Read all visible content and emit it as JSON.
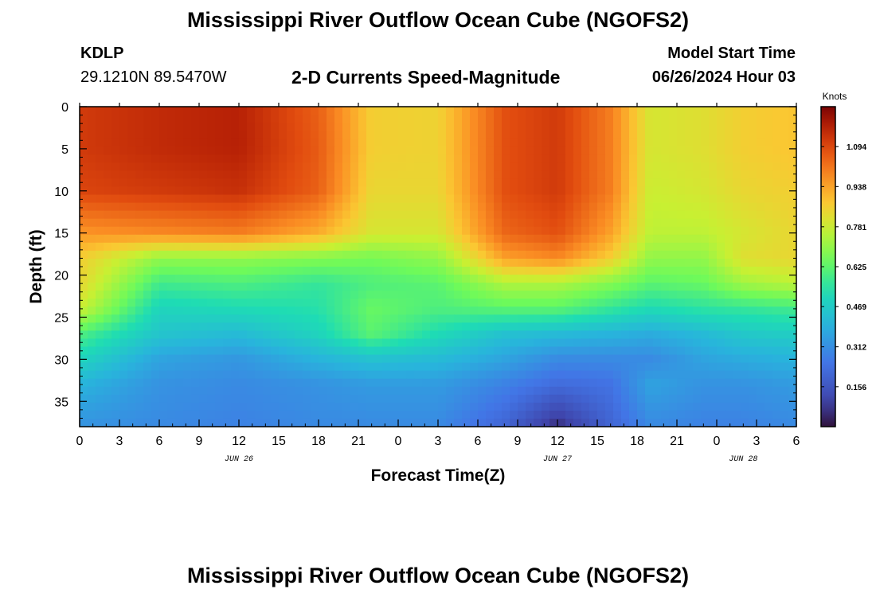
{
  "header": {
    "title": "Mississippi River Outflow Ocean Cube (NGOFS2)",
    "station": "KDLP",
    "coords": "29.1210N  89.5470W",
    "subtitle": "2-D Currents Speed-Magnitude",
    "model_start_label": "Model Start Time",
    "model_start_value": "06/26/2024 Hour 03",
    "footer_title": "Mississippi River Outflow Ocean Cube (NGOFS2)"
  },
  "chart_data": {
    "type": "heatmap",
    "xlabel": "Forecast Time(Z)",
    "ylabel": "Depth (ft)",
    "colorbar_label": "Knots",
    "colorbar_ticks": [
      "0.156",
      "0.312",
      "0.469",
      "0.625",
      "0.781",
      "0.938",
      "1.094"
    ],
    "colorbar_values": [
      0.156,
      0.312,
      0.469,
      0.625,
      0.781,
      0.938,
      1.094
    ],
    "colorbar_range": [
      0.0,
      1.25
    ],
    "x_ticks": [
      "0",
      "3",
      "6",
      "9",
      "12",
      "15",
      "18",
      "21",
      "0",
      "3",
      "6",
      "9",
      "12",
      "15",
      "18",
      "21",
      "0",
      "3",
      "6"
    ],
    "x_hours_elapsed_range": [
      0,
      54
    ],
    "date_labels": [
      {
        "label": "JUN 26",
        "hour": 12
      },
      {
        "label": "JUN 27",
        "hour": 36
      },
      {
        "label": "JUN 28",
        "hour": 50
      }
    ],
    "y_ticks": [
      "0",
      "5",
      "10",
      "15",
      "20",
      "25",
      "30",
      "35"
    ],
    "y_range": [
      0,
      38
    ],
    "hours": [
      0,
      6,
      12,
      18,
      22,
      27,
      32,
      36,
      40,
      43,
      47,
      50,
      54
    ],
    "depths": [
      0,
      5,
      10,
      15,
      18,
      21,
      24,
      27,
      30,
      33,
      38
    ],
    "speed": [
      [
        1.12,
        1.15,
        1.17,
        1.05,
        0.86,
        0.85,
        1.08,
        1.12,
        1.0,
        0.8,
        0.82,
        0.86,
        0.88
      ],
      [
        1.12,
        1.15,
        1.17,
        1.06,
        0.86,
        0.85,
        1.08,
        1.12,
        1.0,
        0.8,
        0.82,
        0.86,
        0.88
      ],
      [
        1.1,
        1.12,
        1.14,
        1.05,
        0.84,
        0.84,
        1.08,
        1.12,
        1.0,
        0.78,
        0.8,
        0.84,
        0.86
      ],
      [
        0.96,
        0.98,
        1.0,
        0.92,
        0.8,
        0.8,
        1.04,
        1.08,
        0.94,
        0.76,
        0.76,
        0.8,
        0.84
      ],
      [
        0.86,
        0.7,
        0.7,
        0.68,
        0.66,
        0.7,
        0.94,
        0.98,
        0.86,
        0.7,
        0.7,
        0.82,
        0.84
      ],
      [
        0.84,
        0.58,
        0.6,
        0.56,
        0.6,
        0.62,
        0.74,
        0.74,
        0.68,
        0.62,
        0.64,
        0.72,
        0.76
      ],
      [
        0.78,
        0.5,
        0.52,
        0.54,
        0.64,
        0.6,
        0.62,
        0.62,
        0.56,
        0.52,
        0.55,
        0.56,
        0.58
      ],
      [
        0.6,
        0.45,
        0.42,
        0.5,
        0.62,
        0.52,
        0.44,
        0.42,
        0.4,
        0.38,
        0.42,
        0.46,
        0.48
      ],
      [
        0.5,
        0.36,
        0.33,
        0.4,
        0.44,
        0.42,
        0.36,
        0.3,
        0.3,
        0.3,
        0.36,
        0.38,
        0.4
      ],
      [
        0.4,
        0.32,
        0.3,
        0.32,
        0.34,
        0.34,
        0.28,
        0.22,
        0.24,
        0.36,
        0.32,
        0.32,
        0.34
      ],
      [
        0.32,
        0.3,
        0.28,
        0.3,
        0.3,
        0.3,
        0.2,
        0.05,
        0.2,
        0.3,
        0.28,
        0.28,
        0.3
      ]
    ]
  }
}
